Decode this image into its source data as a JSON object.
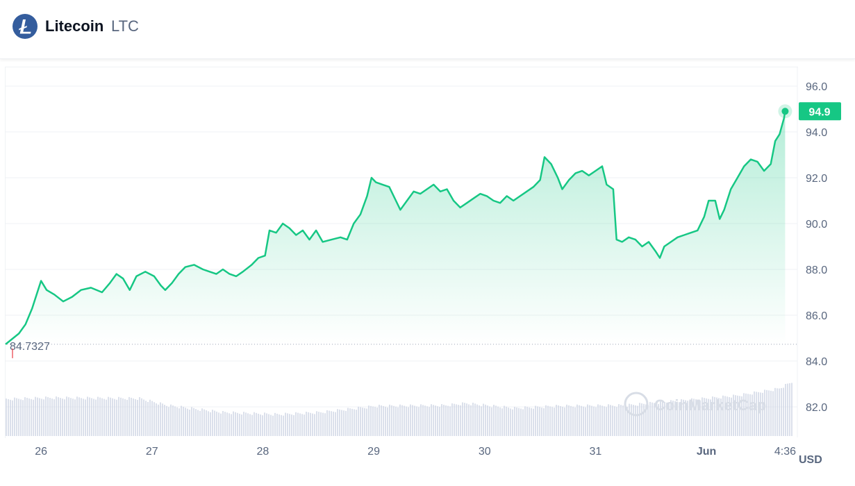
{
  "header": {
    "coin_name": "Litecoin",
    "coin_symbol": "LTC",
    "logo_icon": "litecoin-logo-icon"
  },
  "watermark": "CoinMarketCap",
  "colors": {
    "line": "#16c784",
    "area": "#16c784",
    "current_price_badge": "#16c784",
    "open_marker": "#ea3943",
    "grid": "#eff2f5",
    "axis_text": "#58667e",
    "volume": "#cfd6e4"
  },
  "chart_data": {
    "type": "line",
    "currency": "USD",
    "current_price_label": "94.9",
    "open_price_label": "84.7327",
    "ylim": [
      81,
      96.5
    ],
    "y_ticks": [
      {
        "value": 96,
        "label": "96.0"
      },
      {
        "value": 94,
        "label": "94.0"
      },
      {
        "value": 92,
        "label": "92.0"
      },
      {
        "value": 90,
        "label": "90.0"
      },
      {
        "value": 88,
        "label": "88.0"
      },
      {
        "value": 86,
        "label": "86.0"
      },
      {
        "value": 84,
        "label": "84.0"
      },
      {
        "value": 82,
        "label": "82.0"
      }
    ],
    "x_range": [
      25.68,
      32.77
    ],
    "x_ticks": [
      {
        "value": 26,
        "label": "26"
      },
      {
        "value": 27,
        "label": "27"
      },
      {
        "value": 28,
        "label": "28"
      },
      {
        "value": 29,
        "label": "29"
      },
      {
        "value": 30,
        "label": "30"
      },
      {
        "value": 31,
        "label": "31"
      },
      {
        "value": 32,
        "label": "Jun"
      },
      {
        "value": 32.71,
        "label": "4:36"
      }
    ],
    "series": [
      {
        "values": [
          [
            25.68,
            84.73
          ],
          [
            25.8,
            85.2
          ],
          [
            25.86,
            85.6
          ],
          [
            25.92,
            86.3
          ],
          [
            25.96,
            86.9
          ],
          [
            26.0,
            87.5
          ],
          [
            26.05,
            87.1
          ],
          [
            26.12,
            86.9
          ],
          [
            26.2,
            86.6
          ],
          [
            26.28,
            86.8
          ],
          [
            26.36,
            87.1
          ],
          [
            26.45,
            87.2
          ],
          [
            26.55,
            87.0
          ],
          [
            26.62,
            87.4
          ],
          [
            26.68,
            87.8
          ],
          [
            26.74,
            87.6
          ],
          [
            26.8,
            87.1
          ],
          [
            26.86,
            87.7
          ],
          [
            26.94,
            87.9
          ],
          [
            27.02,
            87.7
          ],
          [
            27.08,
            87.3
          ],
          [
            27.12,
            87.1
          ],
          [
            27.18,
            87.4
          ],
          [
            27.24,
            87.8
          ],
          [
            27.3,
            88.1
          ],
          [
            27.38,
            88.2
          ],
          [
            27.46,
            88.0
          ],
          [
            27.52,
            87.9
          ],
          [
            27.58,
            87.8
          ],
          [
            27.64,
            88.0
          ],
          [
            27.7,
            87.8
          ],
          [
            27.76,
            87.7
          ],
          [
            27.82,
            87.9
          ],
          [
            27.9,
            88.2
          ],
          [
            27.96,
            88.5
          ],
          [
            28.02,
            88.6
          ],
          [
            28.06,
            89.7
          ],
          [
            28.12,
            89.6
          ],
          [
            28.18,
            90.0
          ],
          [
            28.24,
            89.8
          ],
          [
            28.3,
            89.5
          ],
          [
            28.36,
            89.7
          ],
          [
            28.42,
            89.3
          ],
          [
            28.48,
            89.7
          ],
          [
            28.54,
            89.2
          ],
          [
            28.62,
            89.3
          ],
          [
            28.7,
            89.4
          ],
          [
            28.76,
            89.3
          ],
          [
            28.82,
            90.0
          ],
          [
            28.88,
            90.4
          ],
          [
            28.94,
            91.2
          ],
          [
            28.98,
            92.0
          ],
          [
            29.02,
            91.8
          ],
          [
            29.08,
            91.7
          ],
          [
            29.14,
            91.6
          ],
          [
            29.2,
            91.0
          ],
          [
            29.24,
            90.6
          ],
          [
            29.3,
            91.0
          ],
          [
            29.36,
            91.4
          ],
          [
            29.42,
            91.3
          ],
          [
            29.48,
            91.5
          ],
          [
            29.54,
            91.7
          ],
          [
            29.6,
            91.4
          ],
          [
            29.66,
            91.5
          ],
          [
            29.72,
            91.0
          ],
          [
            29.78,
            90.7
          ],
          [
            29.84,
            90.9
          ],
          [
            29.9,
            91.1
          ],
          [
            29.96,
            91.3
          ],
          [
            30.02,
            91.2
          ],
          [
            30.08,
            91.0
          ],
          [
            30.14,
            90.9
          ],
          [
            30.2,
            91.2
          ],
          [
            30.26,
            91.0
          ],
          [
            30.32,
            91.2
          ],
          [
            30.38,
            91.4
          ],
          [
            30.44,
            91.6
          ],
          [
            30.5,
            91.9
          ],
          [
            30.54,
            92.9
          ],
          [
            30.6,
            92.6
          ],
          [
            30.66,
            92.0
          ],
          [
            30.7,
            91.5
          ],
          [
            30.76,
            91.9
          ],
          [
            30.82,
            92.2
          ],
          [
            30.88,
            92.3
          ],
          [
            30.94,
            92.1
          ],
          [
            31.0,
            92.3
          ],
          [
            31.06,
            92.5
          ],
          [
            31.1,
            91.7
          ],
          [
            31.16,
            91.5
          ],
          [
            31.19,
            89.3
          ],
          [
            31.24,
            89.2
          ],
          [
            31.3,
            89.4
          ],
          [
            31.36,
            89.3
          ],
          [
            31.42,
            89.0
          ],
          [
            31.48,
            89.2
          ],
          [
            31.54,
            88.8
          ],
          [
            31.58,
            88.5
          ],
          [
            31.62,
            89.0
          ],
          [
            31.68,
            89.2
          ],
          [
            31.74,
            89.4
          ],
          [
            31.8,
            89.5
          ],
          [
            31.86,
            89.6
          ],
          [
            31.92,
            89.7
          ],
          [
            31.98,
            90.3
          ],
          [
            32.02,
            91.0
          ],
          [
            32.08,
            91.0
          ],
          [
            32.12,
            90.2
          ],
          [
            32.16,
            90.6
          ],
          [
            32.22,
            91.5
          ],
          [
            32.28,
            92.0
          ],
          [
            32.34,
            92.5
          ],
          [
            32.4,
            92.8
          ],
          [
            32.46,
            92.7
          ],
          [
            32.52,
            92.3
          ],
          [
            32.58,
            92.6
          ],
          [
            32.62,
            93.6
          ],
          [
            32.66,
            93.9
          ],
          [
            32.7,
            94.6
          ],
          [
            32.71,
            94.9
          ]
        ]
      }
    ]
  }
}
